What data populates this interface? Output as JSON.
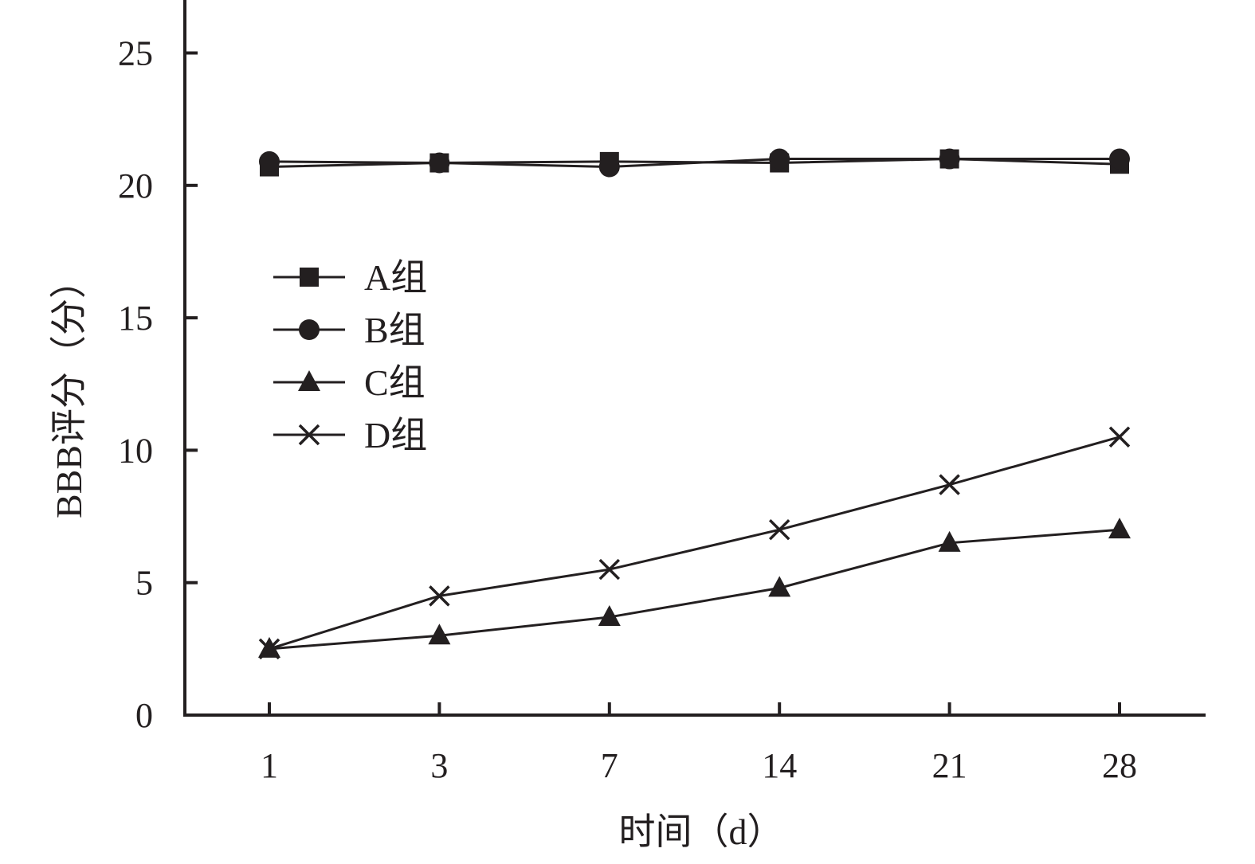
{
  "chart_data": {
    "type": "line",
    "title": "",
    "xlabel": "时间（d）",
    "ylabel": "BBB评分（分）",
    "categories": [
      "1",
      "3",
      "7",
      "14",
      "21",
      "28"
    ],
    "y_ticks": [
      0,
      5,
      10,
      15,
      20,
      25
    ],
    "ylim": [
      0,
      27
    ],
    "grid": false,
    "legend_position": "left-middle",
    "line_color": "#231f20",
    "series": [
      {
        "name": "A组",
        "marker": "square",
        "values": [
          20.7,
          20.85,
          20.9,
          20.85,
          21.0,
          20.8
        ]
      },
      {
        "name": "B组",
        "marker": "circle",
        "values": [
          20.9,
          20.85,
          20.7,
          21.0,
          21.0,
          21.0
        ]
      },
      {
        "name": "C组",
        "marker": "triangle",
        "values": [
          2.5,
          3.0,
          3.7,
          4.8,
          6.5,
          7.0
        ]
      },
      {
        "name": "D组",
        "marker": "cross",
        "values": [
          2.5,
          4.5,
          5.5,
          7.0,
          8.7,
          10.5
        ]
      }
    ]
  }
}
